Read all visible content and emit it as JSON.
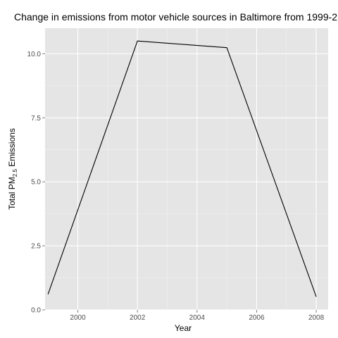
{
  "chart_data": {
    "type": "line",
    "title": "Change in emissions from motor vehicle sources in Baltimore from 1999-2",
    "xlabel": "Year",
    "ylabel": {
      "prefix": "Total PM",
      "subscript": "2.5",
      "suffix": " Emissions"
    },
    "x": [
      1999,
      2002,
      2005,
      2008
    ],
    "series": [
      {
        "values": [
          0.61,
          10.5,
          10.24,
          0.51
        ]
      }
    ],
    "xlim": [
      1998.9,
      2008.4
    ],
    "ylim": [
      0,
      11.0
    ],
    "x_ticks": [
      2000,
      2002,
      2004,
      2006,
      2008
    ],
    "x_tick_labels": [
      "2000",
      "2002",
      "2004",
      "2006",
      "2008"
    ],
    "y_ticks": [
      0,
      2.5,
      5,
      7.5,
      10
    ],
    "y_tick_labels": [
      "0.0",
      "2.5",
      "5.0",
      "7.5",
      "10.0"
    ],
    "grid": true,
    "legend": "none",
    "colors": {
      "panel": "#e5e5e5",
      "grid_major": "#ffffff",
      "grid_minor": "#f2f2f2",
      "line": "#000000",
      "tick": "#7f7f7f"
    }
  }
}
